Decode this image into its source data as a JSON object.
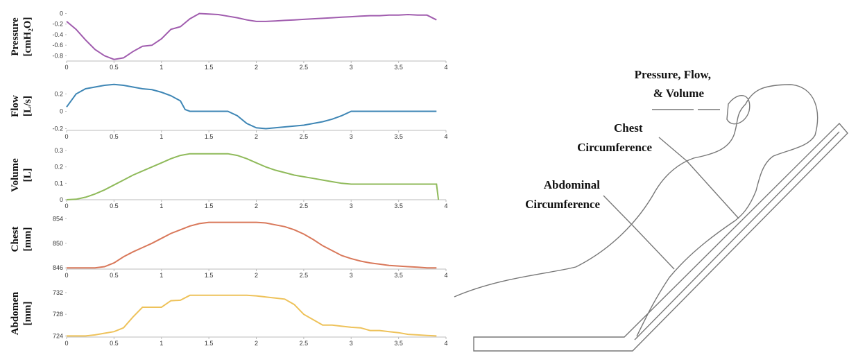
{
  "chart_data": [
    {
      "type": "line",
      "ylabel": [
        "Pressure",
        "[cmH₂O]"
      ],
      "color": "#a05cae",
      "x": [
        0,
        0.1,
        0.2,
        0.3,
        0.4,
        0.5,
        0.6,
        0.7,
        0.8,
        0.9,
        1,
        1.1,
        1.2,
        1.3,
        1.4,
        1.5,
        1.6,
        1.7,
        1.8,
        1.9,
        2,
        2.1,
        2.2,
        2.3,
        2.4,
        2.5,
        2.6,
        2.7,
        2.8,
        2.9,
        3,
        3.1,
        3.2,
        3.3,
        3.4,
        3.5,
        3.6,
        3.7,
        3.8,
        3.9
      ],
      "values": [
        -0.15,
        -0.3,
        -0.5,
        -0.68,
        -0.8,
        -0.87,
        -0.84,
        -0.72,
        -0.62,
        -0.6,
        -0.48,
        -0.3,
        -0.25,
        -0.1,
        0,
        -0.01,
        -0.02,
        -0.05,
        -0.08,
        -0.12,
        -0.15,
        -0.15,
        -0.14,
        -0.13,
        -0.12,
        -0.11,
        -0.1,
        -0.09,
        -0.08,
        -0.07,
        -0.06,
        -0.05,
        -0.04,
        -0.04,
        -0.03,
        -0.03,
        -0.02,
        -0.03,
        -0.03,
        -0.12
      ],
      "xlim": [
        0,
        4
      ],
      "xticks": [
        0,
        0.5,
        1,
        1.5,
        2,
        2.5,
        3,
        3.5,
        4
      ],
      "ylim": [
        -0.9,
        0.02
      ],
      "yticks": [
        0,
        -0.2,
        -0.4,
        -0.6,
        -0.8
      ]
    },
    {
      "type": "line",
      "ylabel": [
        "Flow",
        "[L/s]"
      ],
      "color": "#3e86b5",
      "x": [
        0,
        0.1,
        0.2,
        0.3,
        0.4,
        0.5,
        0.6,
        0.7,
        0.8,
        0.9,
        1,
        1.1,
        1.2,
        1.25,
        1.3,
        1.4,
        1.5,
        1.6,
        1.7,
        1.8,
        1.9,
        2,
        2.1,
        2.2,
        2.3,
        2.4,
        2.5,
        2.6,
        2.7,
        2.8,
        2.9,
        3,
        3.1,
        3.2,
        3.3,
        3.4,
        3.5,
        3.6,
        3.7,
        3.8,
        3.9
      ],
      "values": [
        0.05,
        0.2,
        0.26,
        0.28,
        0.3,
        0.31,
        0.3,
        0.28,
        0.26,
        0.25,
        0.22,
        0.18,
        0.12,
        0.02,
        0,
        0,
        0,
        0,
        0,
        -0.05,
        -0.14,
        -0.19,
        -0.2,
        -0.19,
        -0.18,
        -0.17,
        -0.16,
        -0.14,
        -0.12,
        -0.09,
        -0.05,
        0,
        0,
        0,
        0,
        0,
        0,
        0,
        0,
        0,
        0
      ],
      "xlim": [
        0,
        4
      ],
      "xticks": [
        0,
        0.5,
        1,
        1.5,
        2,
        2.5,
        3,
        3.5,
        4
      ],
      "ylim": [
        -0.22,
        0.34
      ],
      "yticks": [
        0.2,
        0,
        -0.2
      ]
    },
    {
      "type": "line",
      "ylabel": [
        "Volume",
        "[L]"
      ],
      "color": "#8fba5a",
      "x": [
        0,
        0.1,
        0.2,
        0.3,
        0.4,
        0.5,
        0.6,
        0.7,
        0.8,
        0.9,
        1,
        1.1,
        1.2,
        1.3,
        1.4,
        1.5,
        1.6,
        1.7,
        1.8,
        1.9,
        2,
        2.1,
        2.2,
        2.3,
        2.4,
        2.5,
        2.6,
        2.7,
        2.8,
        2.9,
        3,
        3.1,
        3.2,
        3.3,
        3.4,
        3.5,
        3.6,
        3.7,
        3.8,
        3.9,
        3.92
      ],
      "values": [
        0,
        0.003,
        0.015,
        0.035,
        0.06,
        0.09,
        0.12,
        0.15,
        0.175,
        0.2,
        0.225,
        0.25,
        0.27,
        0.28,
        0.28,
        0.28,
        0.28,
        0.28,
        0.27,
        0.25,
        0.225,
        0.2,
        0.18,
        0.165,
        0.15,
        0.14,
        0.13,
        0.12,
        0.11,
        0.1,
        0.095,
        0.095,
        0.095,
        0.095,
        0.095,
        0.095,
        0.095,
        0.095,
        0.095,
        0.095,
        0
      ],
      "xlim": [
        0,
        4
      ],
      "xticks": [
        0,
        0.5,
        1,
        1.5,
        2,
        2.5,
        3,
        3.5,
        4
      ],
      "ylim": [
        0,
        0.3
      ],
      "yticks": [
        0,
        0.1,
        0.2,
        0.3
      ]
    },
    {
      "type": "line",
      "ylabel": [
        "Chest",
        "[mm]"
      ],
      "color": "#d9785a",
      "x": [
        0,
        0.1,
        0.2,
        0.3,
        0.4,
        0.5,
        0.6,
        0.7,
        0.8,
        0.9,
        1,
        1.1,
        1.2,
        1.3,
        1.4,
        1.5,
        1.6,
        1.7,
        1.8,
        1.9,
        2,
        2.1,
        2.2,
        2.3,
        2.4,
        2.5,
        2.6,
        2.7,
        2.8,
        2.9,
        3,
        3.1,
        3.2,
        3.3,
        3.4,
        3.5,
        3.6,
        3.7,
        3.8,
        3.9
      ],
      "values": [
        846,
        846,
        846,
        846,
        846.2,
        846.8,
        847.8,
        848.6,
        849.3,
        850,
        850.8,
        851.6,
        852.2,
        852.8,
        853.2,
        853.4,
        853.4,
        853.4,
        853.4,
        853.4,
        853.4,
        853.3,
        853,
        852.7,
        852.2,
        851.5,
        850.6,
        849.6,
        848.8,
        848,
        847.5,
        847.1,
        846.8,
        846.6,
        846.4,
        846.3,
        846.2,
        846.1,
        846,
        846
      ],
      "xlim": [
        0,
        4
      ],
      "xticks": [
        0,
        0.5,
        1,
        1.5,
        2,
        2.5,
        3,
        3.5,
        4
      ],
      "ylim": [
        845.8,
        855.5
      ],
      "yticks": [
        846,
        850,
        854
      ]
    },
    {
      "type": "line",
      "ylabel": [
        "Abdomen",
        "[mm]"
      ],
      "color": "#eec25a",
      "x": [
        0,
        0.1,
        0.2,
        0.3,
        0.4,
        0.5,
        0.6,
        0.7,
        0.8,
        0.9,
        1,
        1.1,
        1.2,
        1.3,
        1.4,
        1.5,
        1.6,
        1.7,
        1.8,
        1.9,
        2,
        2.1,
        2.2,
        2.3,
        2.4,
        2.5,
        2.6,
        2.7,
        2.8,
        2.9,
        3,
        3.1,
        3.2,
        3.3,
        3.4,
        3.5,
        3.6,
        3.7,
        3.8,
        3.9
      ],
      "values": [
        724,
        724,
        724,
        724.2,
        724.5,
        724.8,
        725.5,
        727.5,
        729.3,
        729.3,
        729.3,
        730.5,
        730.6,
        731.5,
        731.5,
        731.5,
        731.5,
        731.5,
        731.5,
        731.5,
        731.4,
        731.2,
        731,
        730.8,
        729.8,
        728,
        727,
        726,
        726,
        725.8,
        725.6,
        725.5,
        725,
        725,
        724.8,
        724.6,
        724.3,
        724.2,
        724.1,
        724
      ],
      "xlim": [
        0,
        4
      ],
      "xticks": [
        0,
        0.5,
        1,
        1.5,
        2,
        2.5,
        3,
        3.5,
        4
      ],
      "ylim": [
        723.8,
        732.5
      ],
      "yticks": [
        724,
        728,
        732
      ]
    }
  ],
  "diagram": {
    "labels": [
      [
        "Pressure, Flow,",
        "& Volume"
      ],
      [
        "Chest",
        "Circumference"
      ],
      [
        "Abdominal",
        "Circumference"
      ]
    ]
  }
}
